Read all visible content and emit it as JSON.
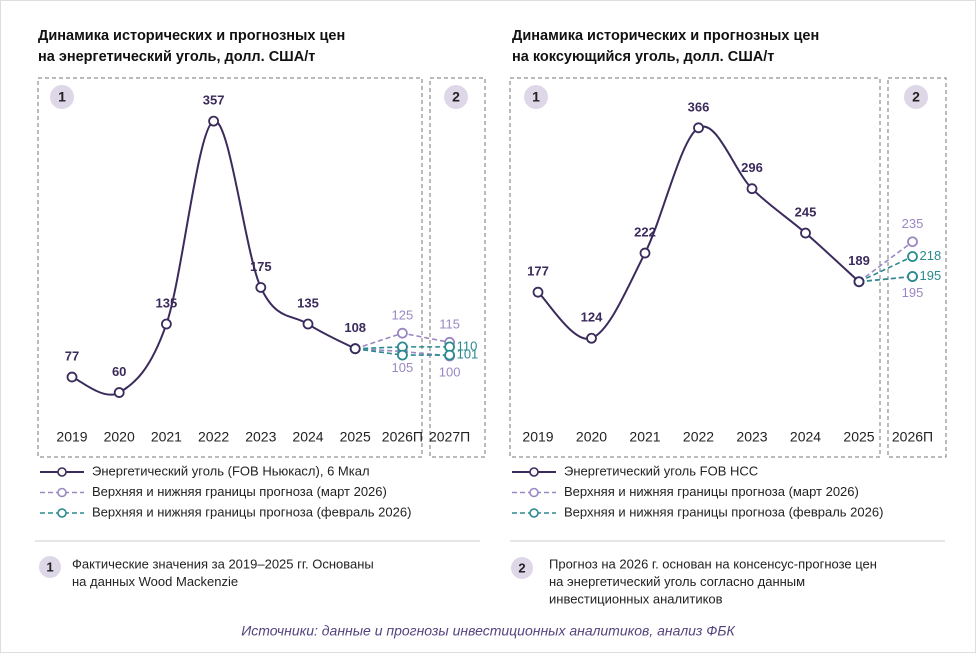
{
  "chart_data": [
    {
      "type": "line",
      "title": [
        "Динамика исторических и прогнозных цен",
        "на энергетический уголь, долл. США/т"
      ],
      "panel_labels": [
        "1",
        "2"
      ],
      "categories": [
        "2019",
        "2020",
        "2021",
        "2022",
        "2023",
        "2024",
        "2025",
        "2026П",
        "2027П"
      ],
      "ylim": [
        30,
        402
      ],
      "series": [
        {
          "name": "Энергетический уголь (FOB Ньюкасл), 6 Мкал",
          "color": "#3b2b5c",
          "dashed": false,
          "values": [
            77,
            60,
            135,
            357,
            175,
            135,
            108,
            null,
            null
          ],
          "value_labels": [
            "77",
            "60",
            "135",
            "357",
            "175",
            "135",
            "108",
            null,
            null
          ]
        },
        {
          "name": "Верхняя и нижняя границы прогноза (март 2026)",
          "color": "#9a88c2",
          "dashed": true,
          "values": [
            null,
            null,
            null,
            null,
            null,
            null,
            108,
            125,
            115
          ],
          "value_labels": [
            null,
            null,
            null,
            null,
            null,
            null,
            null,
            "125",
            "115"
          ]
        },
        {
          "color": "#9a88c2",
          "dashed": true,
          "values": [
            null,
            null,
            null,
            null,
            null,
            null,
            108,
            105,
            100
          ],
          "value_labels": [
            null,
            null,
            null,
            null,
            null,
            null,
            null,
            "105",
            "100"
          ]
        },
        {
          "name": "Верхняя и нижняя границы прогноза (февраль 2026)",
          "color": "#2a8a8e",
          "dashed": true,
          "values": [
            null,
            null,
            null,
            null,
            null,
            null,
            108,
            110,
            110
          ],
          "value_labels": [
            null,
            null,
            null,
            null,
            null,
            null,
            null,
            null,
            "110"
          ]
        },
        {
          "color": "#2a8a8e",
          "dashed": true,
          "values": [
            null,
            null,
            null,
            null,
            null,
            null,
            108,
            101,
            101
          ],
          "value_labels": [
            null,
            null,
            null,
            null,
            null,
            null,
            null,
            null,
            "101"
          ]
        }
      ]
    },
    {
      "type": "line",
      "title": [
        "Динамика исторических и прогнозных цен",
        "на коксующийся уголь, долл. США/т"
      ],
      "panel_labels": [
        "1",
        "2"
      ],
      "categories": [
        "2019",
        "2020",
        "2021",
        "2022",
        "2023",
        "2024",
        "2025",
        "2026П"
      ],
      "ylim": [
        30,
        421
      ],
      "series": [
        {
          "name": "Энергетический уголь FOB HCC",
          "color": "#3b2b5c",
          "dashed": false,
          "values": [
            177,
            124,
            222,
            366,
            296,
            245,
            189,
            null
          ],
          "value_labels": [
            "177",
            "124",
            "222",
            "366",
            "296",
            "245",
            "189",
            null
          ]
        },
        {
          "name": "Верхняя и нижняя границы прогноза (март 2026)",
          "color": "#9a88c2",
          "dashed": true,
          "values": [
            null,
            null,
            null,
            null,
            null,
            null,
            189,
            235
          ],
          "value_labels": [
            null,
            null,
            null,
            null,
            null,
            null,
            null,
            "235"
          ]
        },
        {
          "color": "#9a88c2",
          "dashed": true,
          "values": [
            null,
            null,
            null,
            null,
            null,
            null,
            189,
            195
          ],
          "value_labels": [
            null,
            null,
            null,
            null,
            null,
            null,
            null,
            "195"
          ]
        },
        {
          "name": "Верхняя и нижняя границы прогноза (февраль 2026)",
          "color": "#2a8a8e",
          "dashed": true,
          "values": [
            null,
            null,
            null,
            null,
            null,
            null,
            189,
            218
          ],
          "value_labels": [
            null,
            null,
            null,
            null,
            null,
            null,
            null,
            "218"
          ]
        },
        {
          "color": "#2a8a8e",
          "dashed": true,
          "values": [
            null,
            null,
            null,
            null,
            null,
            null,
            189,
            195
          ],
          "value_labels": [
            null,
            null,
            null,
            null,
            null,
            null,
            null,
            "195"
          ]
        }
      ]
    }
  ],
  "notes": [
    {
      "badge": "1",
      "lines": [
        "Фактические значения за 2019–2025 гг. Основаны",
        "на данных Wood Mackenzie"
      ]
    },
    {
      "badge": "2",
      "lines": [
        "Прогноз на 2026 г. основан на консенсус-прогнозе цен",
        "на энергетический уголь согласно данным",
        "инвестиционных аналитиков"
      ]
    }
  ],
  "source": "Источники: данные и прогнозы инвестиционных аналитиков, анализ ФБК"
}
